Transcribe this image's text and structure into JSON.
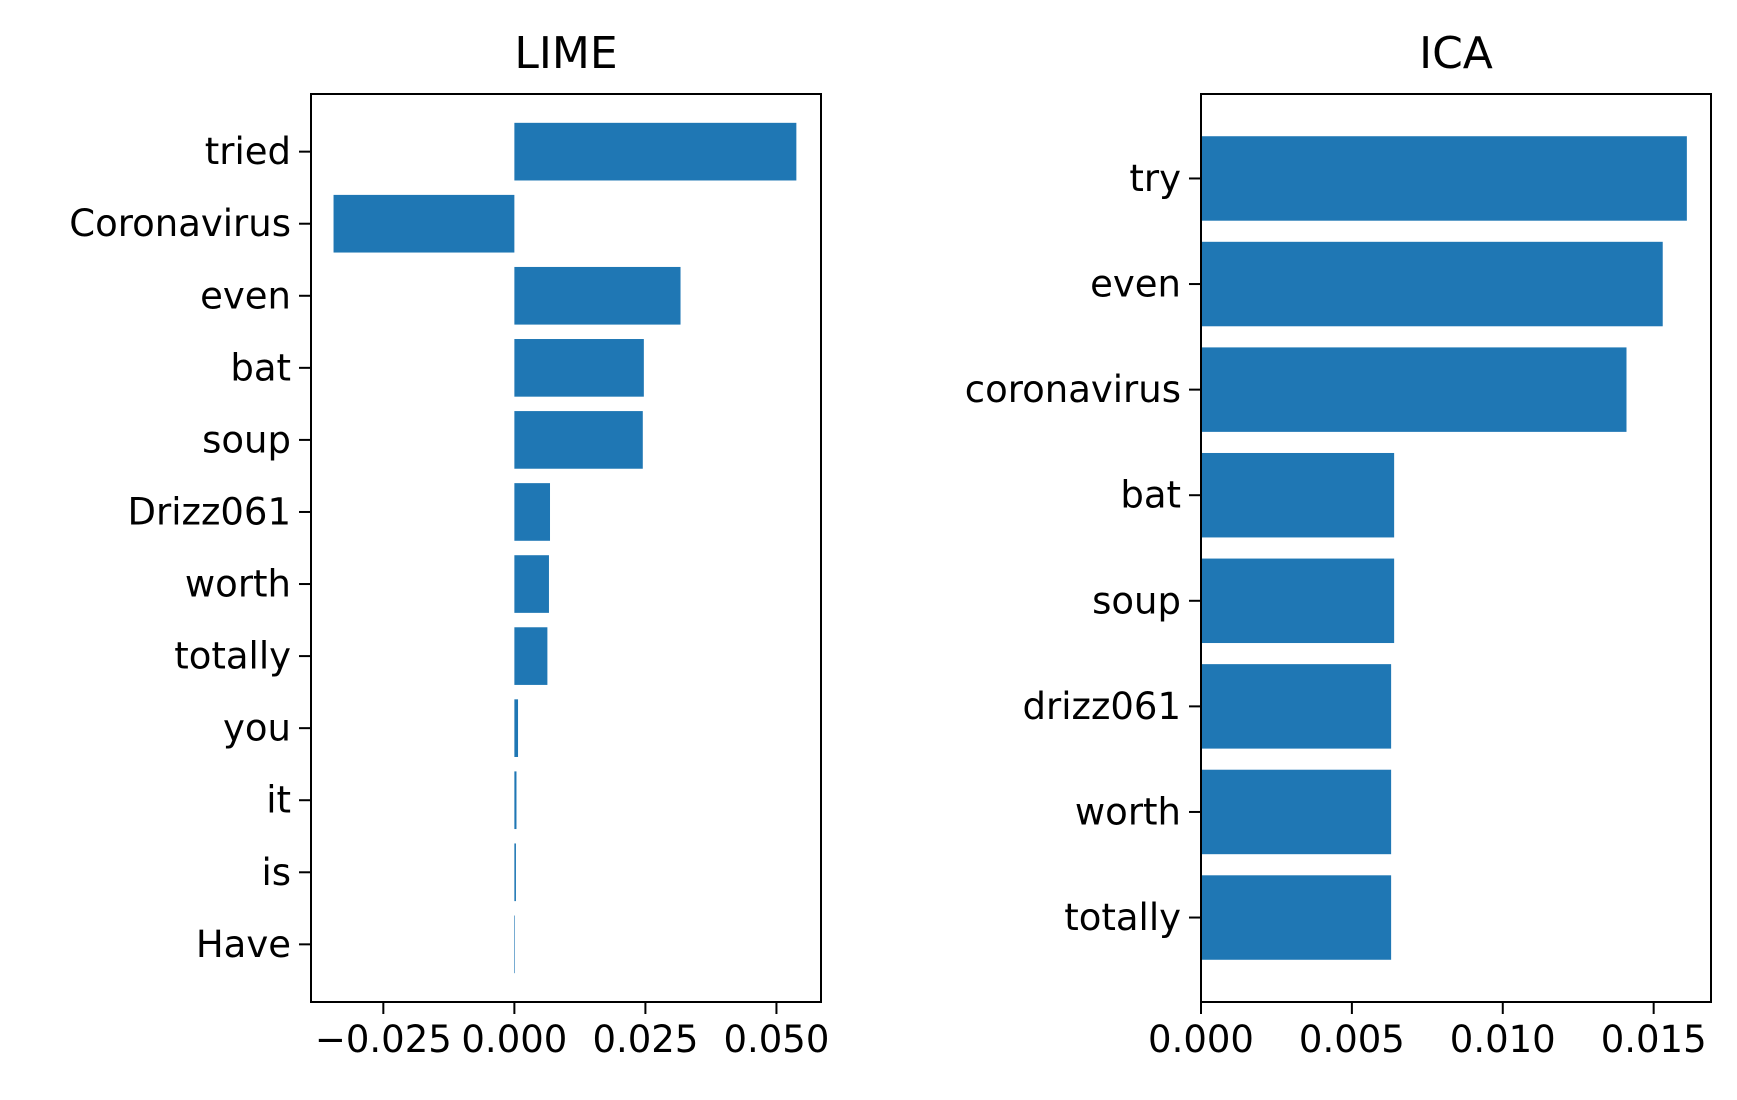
{
  "chart_data": [
    {
      "type": "bar",
      "orientation": "horizontal",
      "title": "LIME",
      "categories": [
        "tried",
        "Coronavirus",
        "even",
        "bat",
        "soup",
        "Drizz061",
        "worth",
        "totally",
        "you",
        "it",
        "is",
        "Have"
      ],
      "values": [
        0.0538,
        -0.0345,
        0.0317,
        0.0247,
        0.0245,
        0.0068,
        0.0066,
        0.0063,
        0.0007,
        0.0004,
        0.0003,
        0.0
      ],
      "xlim": [
        -0.0388,
        0.0585
      ],
      "xticks": [
        -0.025,
        0.0,
        0.025,
        0.05
      ],
      "xtick_labels": [
        "−0.025",
        "0.000",
        "0.025",
        "0.050"
      ],
      "color": "#1f77b4",
      "grid": false,
      "xlabel": "",
      "ylabel": ""
    },
    {
      "type": "bar",
      "orientation": "horizontal",
      "title": "ICA",
      "categories": [
        "try",
        "even",
        "coronavirus",
        "bat",
        "soup",
        "drizz061",
        "worth",
        "totally"
      ],
      "values": [
        0.0161,
        0.0153,
        0.0141,
        0.0064,
        0.0064,
        0.0063,
        0.0063,
        0.0063
      ],
      "xlim": [
        0.0,
        0.0169
      ],
      "xticks": [
        0.0,
        0.005,
        0.01,
        0.015
      ],
      "xtick_labels": [
        "0.000",
        "0.005",
        "0.010",
        "0.015"
      ],
      "color": "#1f77b4",
      "grid": false,
      "xlabel": "",
      "ylabel": ""
    }
  ]
}
